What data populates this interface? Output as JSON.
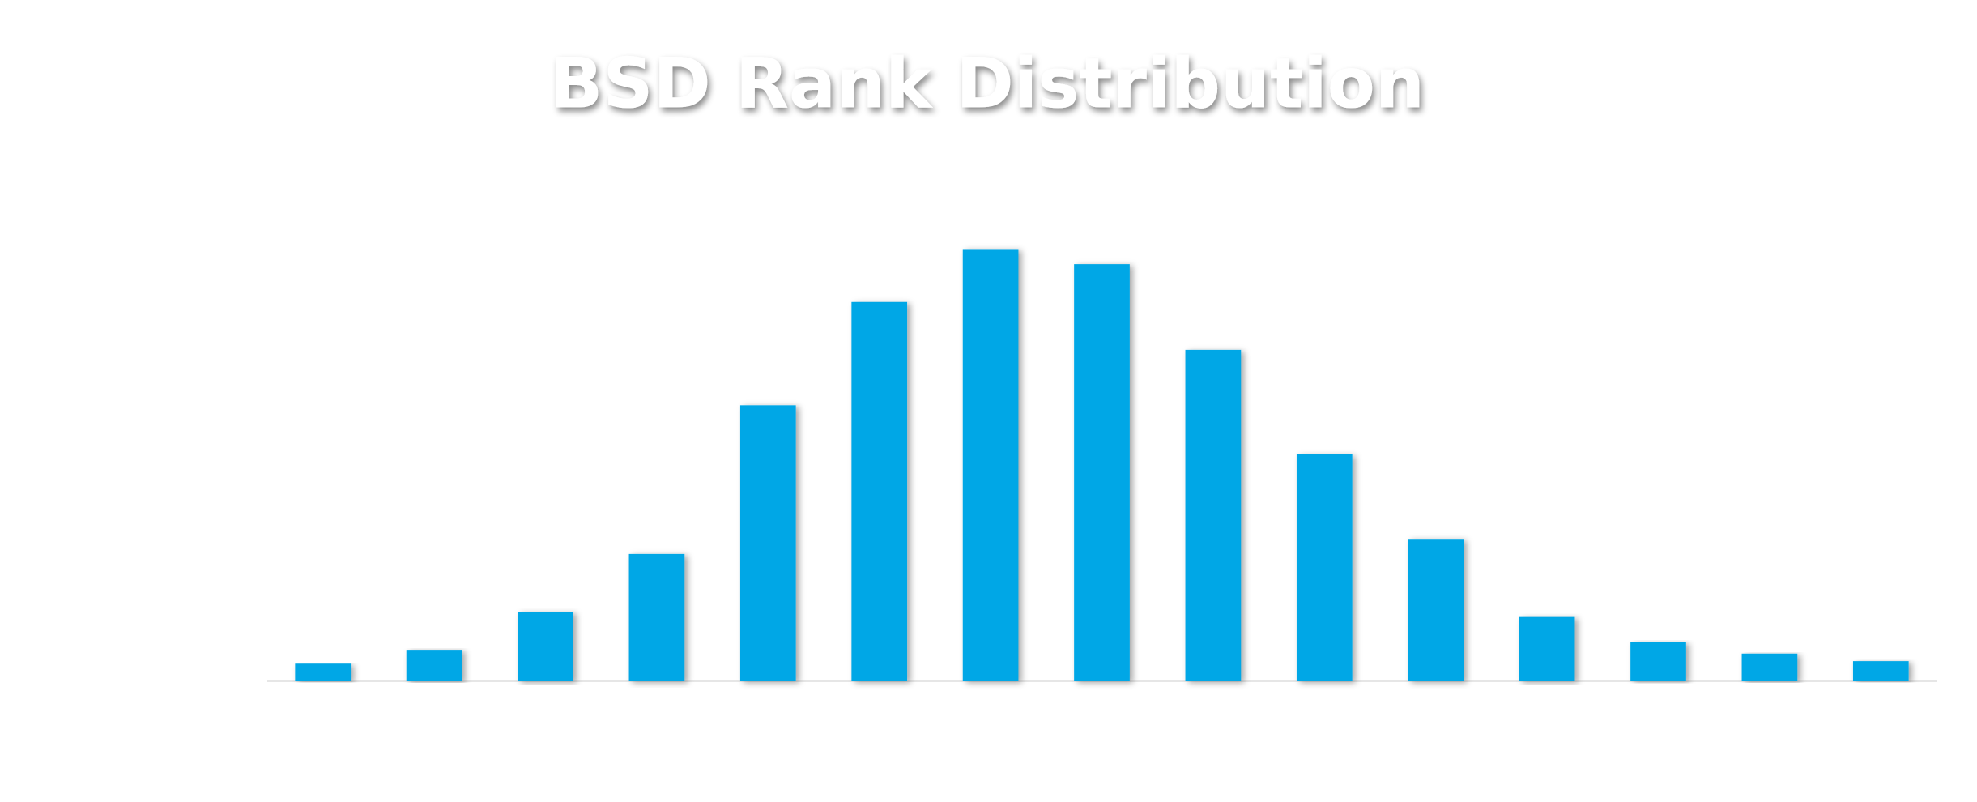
{
  "chart_data": {
    "type": "bar",
    "title": "BSD Rank Distribution",
    "categories": [
      null,
      null,
      null,
      null,
      null,
      null,
      null,
      null,
      null,
      null,
      null,
      null,
      null,
      null,
      null
    ],
    "values": [
      14,
      25,
      55,
      101,
      219,
      301,
      343,
      331,
      263,
      180,
      113,
      51,
      31,
      22,
      16
    ],
    "color": "#00a7e6",
    "ylim": [
      0,
      360
    ]
  }
}
